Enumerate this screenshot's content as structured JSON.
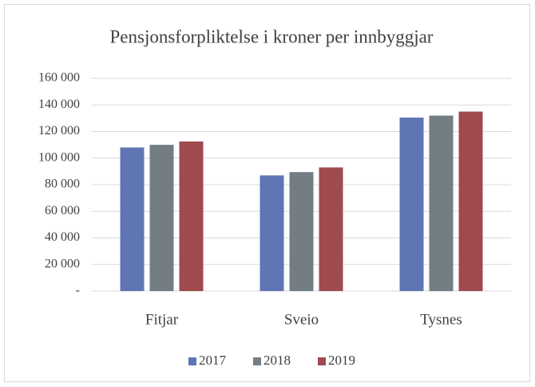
{
  "chart_data": {
    "type": "bar",
    "title": "Pensjonsforpliktelse i kroner per innbyggjar",
    "categories": [
      "Fitjar",
      "Sveio",
      "Tysnes"
    ],
    "series": [
      {
        "name": "2017",
        "color": "#6076b4",
        "values": [
          108000,
          87000,
          130500
        ]
      },
      {
        "name": "2018",
        "color": "#737e84",
        "values": [
          110000,
          89500,
          132000
        ]
      },
      {
        "name": "2019",
        "color": "#9e4a4f",
        "values": [
          112500,
          93000,
          135000
        ]
      }
    ],
    "ylim": [
      0,
      160000
    ],
    "yticks": [
      {
        "value": 0,
        "label": "-"
      },
      {
        "value": 20000,
        "label": "20 000"
      },
      {
        "value": 40000,
        "label": "40 000"
      },
      {
        "value": 60000,
        "label": "60 000"
      },
      {
        "value": 80000,
        "label": "80 000"
      },
      {
        "value": 100000,
        "label": "100 000"
      },
      {
        "value": 120000,
        "label": "120 000"
      },
      {
        "value": 140000,
        "label": "140 000"
      },
      {
        "value": 160000,
        "label": "160 000"
      }
    ],
    "grid": true,
    "legend": "bottom"
  }
}
